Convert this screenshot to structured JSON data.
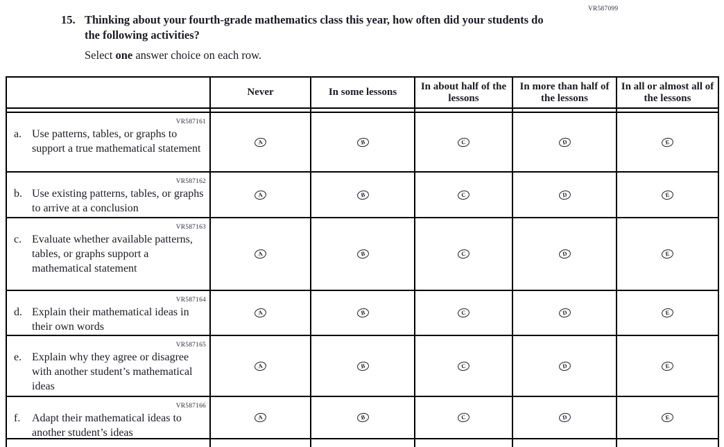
{
  "page": {
    "top_code": "VR587099"
  },
  "colors": {
    "ink": "#1b1b24",
    "border": "#000000",
    "code": "#2e2e3e"
  },
  "question": {
    "number": "15.",
    "text": "Thinking about your fourth-grade mathematics class this year, how often did your students do the following activities?",
    "instruction_prefix": "Select ",
    "instruction_bold": "one",
    "instruction_suffix": " answer choice on each row."
  },
  "table": {
    "columns": [
      "Never",
      "In some lessons",
      "In about half of the lessons",
      "In more than half of the lessons",
      "In all or almost all of the lessons"
    ],
    "options": [
      "A",
      "B",
      "C",
      "D",
      "E"
    ],
    "rows": [
      {
        "vr": "VR587161",
        "prefix": "a.",
        "text": "Use patterns, tables, or graphs to support a true mathematical statement"
      },
      {
        "vr": "VR587162",
        "prefix": "b.",
        "text": "Use existing patterns, tables, or graphs to arrive at a conclusion"
      },
      {
        "vr": "VR587163",
        "prefix": "c.",
        "text": "Evaluate whether available patterns, tables, or graphs support a mathematical statement"
      },
      {
        "vr": "VR587164",
        "prefix": "d.",
        "text": "Explain their mathematical ideas in their own words"
      },
      {
        "vr": "VR587165",
        "prefix": "e.",
        "text": "Explain why they agree or disagree with another student’s mathematical ideas"
      },
      {
        "vr": "VR587166",
        "prefix": "f.",
        "text": "Adapt their mathematical ideas to another student’s ideas"
      }
    ]
  }
}
